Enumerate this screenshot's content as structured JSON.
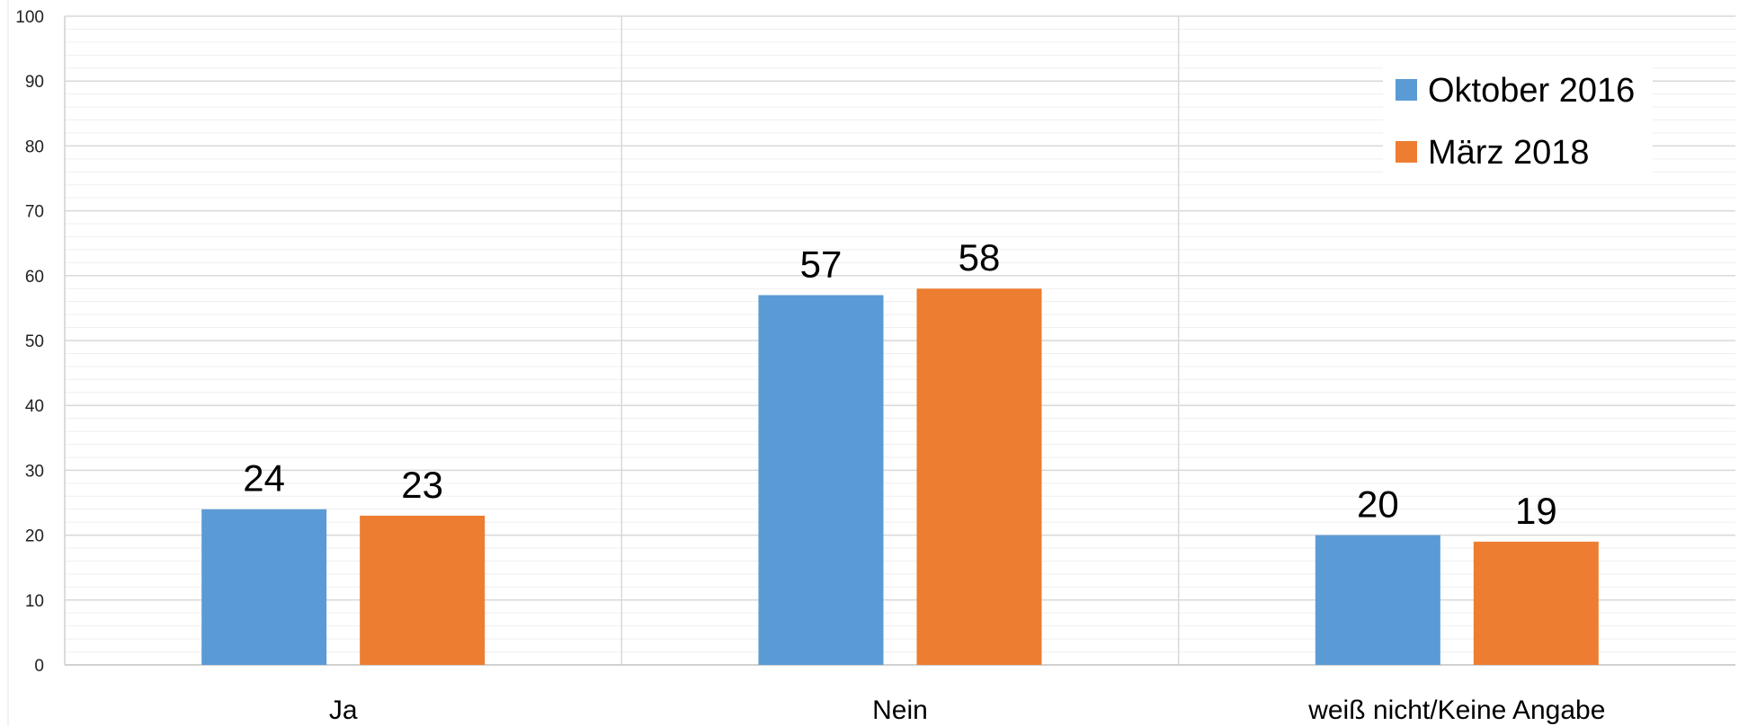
{
  "chart_data": {
    "type": "bar",
    "categories": [
      "Ja",
      "Nein",
      "weiß nicht/Keine Angabe"
    ],
    "series": [
      {
        "name": "Oktober 2016",
        "values": [
          24,
          57,
          20
        ],
        "color": "#5B9BD5"
      },
      {
        "name": "März 2018",
        "values": [
          23,
          58,
          19
        ],
        "color": "#ED7D31"
      }
    ],
    "ylim": [
      0,
      100
    ],
    "yticks": [
      "0",
      "10",
      "20",
      "30",
      "40",
      "50",
      "60",
      "70",
      "80",
      "90",
      "100"
    ],
    "data_labels": [
      [
        "24",
        "57",
        "20"
      ],
      [
        "23",
        "58",
        "19"
      ]
    ],
    "grid": true,
    "legend_position": "top-right"
  }
}
